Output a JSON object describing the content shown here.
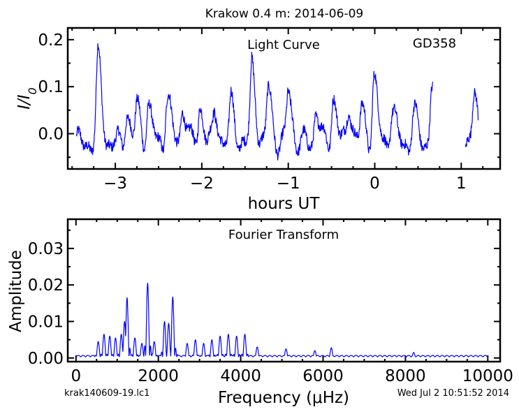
{
  "title": "Krakow 0.4 m:  2014-06-09",
  "footer": {
    "filename": "krak140609-19.lc1",
    "timestamp": "Wed Jul  2 10:51:52 2014"
  },
  "colors": {
    "trace": "#0000ff",
    "frame": "#000000"
  },
  "chart_data": [
    {
      "type": "line",
      "panel": "light-curve",
      "label": "Light Curve",
      "object": "GD358",
      "xlabel": "hours UT",
      "ylabel": "I/I0",
      "xlim": [
        -3.55,
        1.45
      ],
      "ylim": [
        -0.075,
        0.225
      ],
      "xticks": [
        -3,
        -2,
        -1,
        0,
        1
      ],
      "xtick_labels": [
        "−3",
        "−2",
        "−1",
        "0",
        "1"
      ],
      "yticks": [
        0.0,
        0.1,
        0.2
      ],
      "ytick_labels": [
        "0.0",
        "0.1",
        "0.2"
      ],
      "segments": [
        {
          "x_range": [
            -3.45,
            0.67
          ],
          "note": "continuous"
        },
        {
          "x_range": [
            1.05,
            1.2
          ],
          "note": "after gap"
        }
      ],
      "peaks": [
        {
          "x": -3.2,
          "y": 0.16
        },
        {
          "x": -2.87,
          "y": 0.045
        },
        {
          "x": -2.75,
          "y": 0.055
        },
        {
          "x": -2.62,
          "y": 0.06
        },
        {
          "x": -2.4,
          "y": 0.085
        },
        {
          "x": -2.22,
          "y": 0.06
        },
        {
          "x": -2.02,
          "y": 0.06
        },
        {
          "x": -1.85,
          "y": 0.045
        },
        {
          "x": -1.66,
          "y": 0.065
        },
        {
          "x": -1.42,
          "y": 0.145
        },
        {
          "x": -1.23,
          "y": 0.095
        },
        {
          "x": -1.0,
          "y": 0.09
        },
        {
          "x": -0.68,
          "y": 0.05
        },
        {
          "x": -0.48,
          "y": 0.08
        },
        {
          "x": -0.3,
          "y": 0.06
        },
        {
          "x": -0.15,
          "y": 0.05
        },
        {
          "x": -0.01,
          "y": 0.12
        },
        {
          "x": 0.2,
          "y": 0.055
        },
        {
          "x": 0.45,
          "y": 0.045
        },
        {
          "x": 0.66,
          "y": 0.105
        },
        {
          "x": 1.15,
          "y": 0.075
        }
      ],
      "baseline": -0.02
    },
    {
      "type": "line",
      "panel": "fourier-transform",
      "label": "Fourier Transform",
      "xlabel": "Frequency (μHz)",
      "ylabel": "Amplitude",
      "xlim": [
        -200,
        10300
      ],
      "ylim": [
        -0.001,
        0.038
      ],
      "xticks": [
        0,
        2000,
        4000,
        6000,
        8000,
        10000
      ],
      "xtick_labels": [
        "0",
        "2000",
        "4000",
        "6000",
        "8000",
        "10000"
      ],
      "yticks": [
        0.0,
        0.01,
        0.02,
        0.03
      ],
      "ytick_labels": [
        "0.00",
        "0.01",
        "0.02",
        "0.03"
      ],
      "peaks": [
        {
          "x": 540,
          "y": 0.0045
        },
        {
          "x": 680,
          "y": 0.0065
        },
        {
          "x": 820,
          "y": 0.006
        },
        {
          "x": 960,
          "y": 0.0055
        },
        {
          "x": 1100,
          "y": 0.0065
        },
        {
          "x": 1180,
          "y": 0.01
        },
        {
          "x": 1240,
          "y": 0.0165
        },
        {
          "x": 1430,
          "y": 0.0055
        },
        {
          "x": 1600,
          "y": 0.004
        },
        {
          "x": 1740,
          "y": 0.0205
        },
        {
          "x": 1900,
          "y": 0.0045
        },
        {
          "x": 2150,
          "y": 0.01
        },
        {
          "x": 2250,
          "y": 0.0095
        },
        {
          "x": 2350,
          "y": 0.0167
        },
        {
          "x": 2700,
          "y": 0.004
        },
        {
          "x": 2900,
          "y": 0.005
        },
        {
          "x": 3100,
          "y": 0.004
        },
        {
          "x": 3300,
          "y": 0.005
        },
        {
          "x": 3500,
          "y": 0.006
        },
        {
          "x": 3700,
          "y": 0.0065
        },
        {
          "x": 3900,
          "y": 0.006
        },
        {
          "x": 4100,
          "y": 0.0065
        },
        {
          "x": 4400,
          "y": 0.003
        },
        {
          "x": 5100,
          "y": 0.0025
        },
        {
          "x": 5800,
          "y": 0.002
        },
        {
          "x": 6200,
          "y": 0.0028
        },
        {
          "x": 8200,
          "y": 0.0015
        }
      ],
      "noise_floor": 0.0005
    }
  ]
}
